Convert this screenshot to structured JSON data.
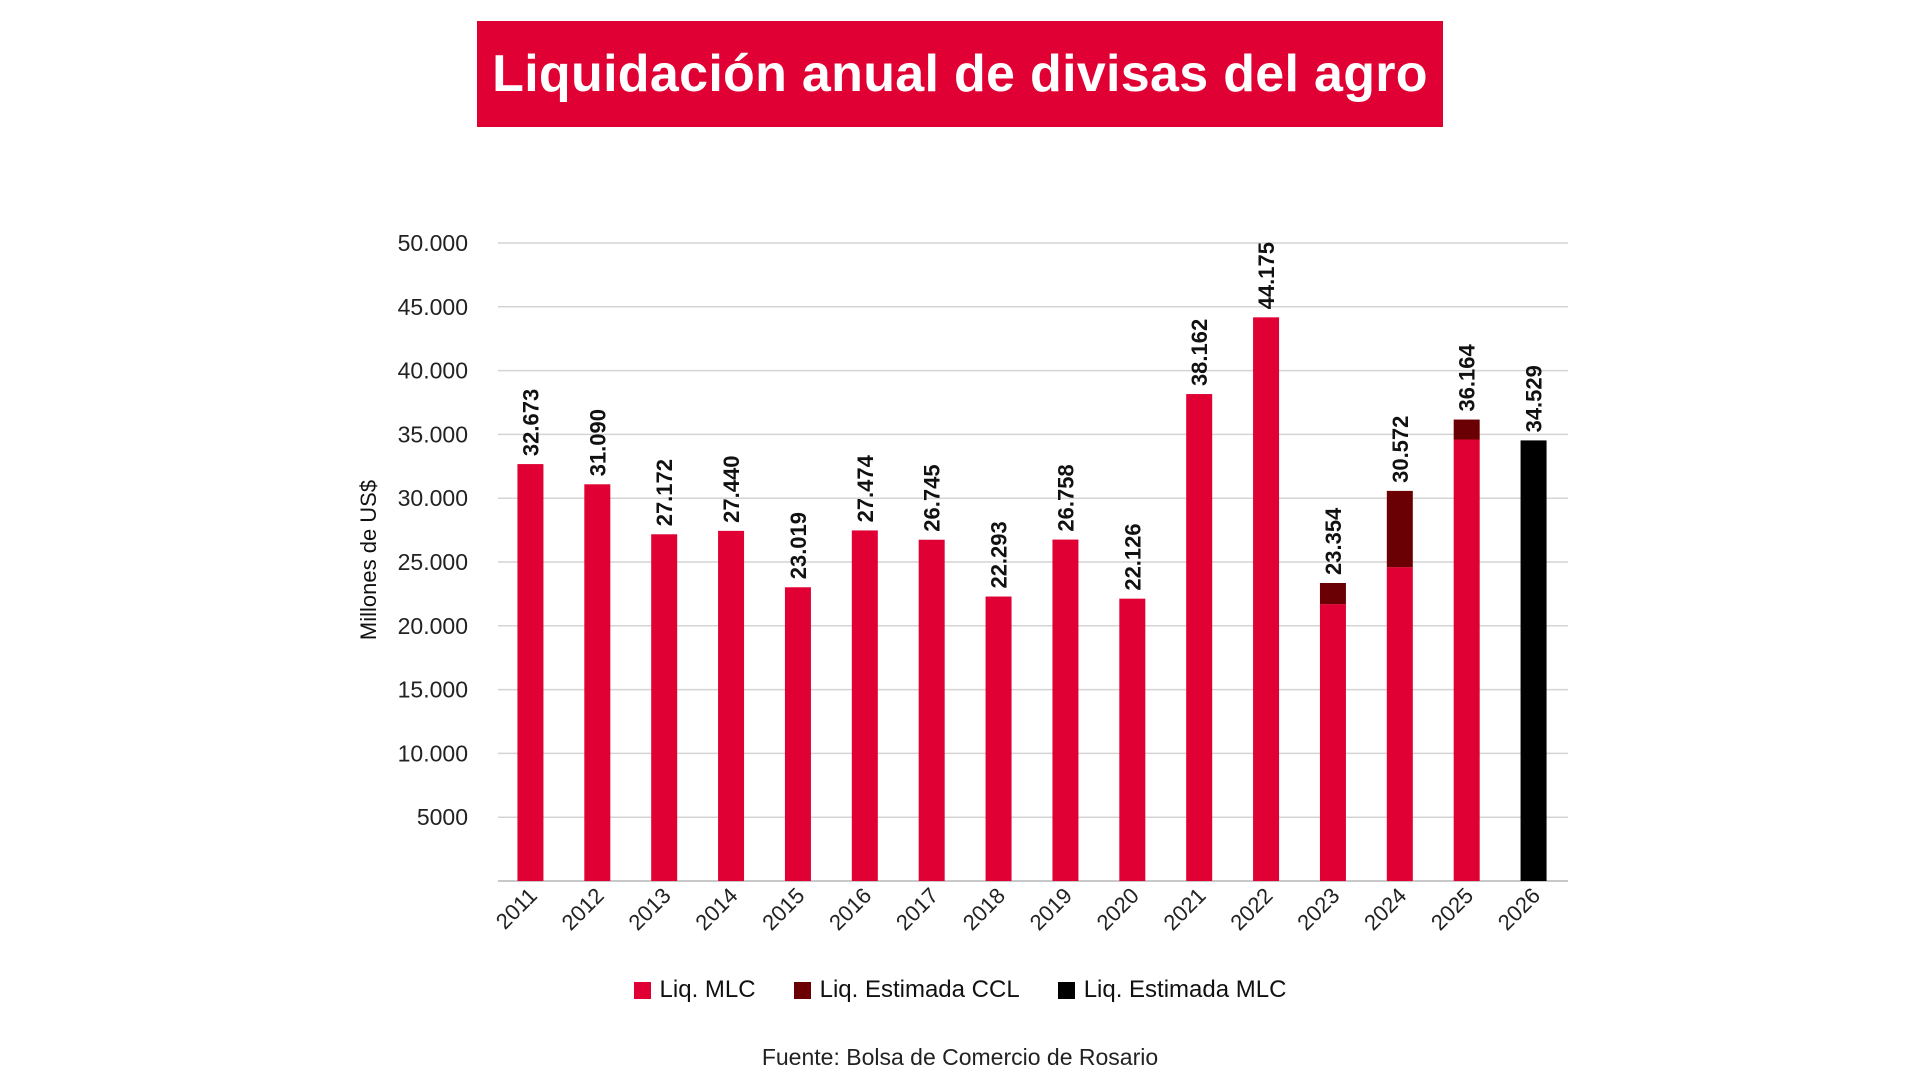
{
  "title": "Liquidación anual de divisas del agro",
  "source": "Fuente: Bolsa de Comercio de Rosario",
  "chart_data": {
    "type": "bar",
    "stacked": true,
    "title": "Liquidación anual de divisas del agro",
    "xlabel": "",
    "ylabel": "Millones de US$",
    "ylim": [
      0,
      50000
    ],
    "yticks": [
      5000,
      10000,
      15000,
      20000,
      25000,
      30000,
      35000,
      40000,
      45000,
      50000
    ],
    "ytick_labels": [
      "5000",
      "10.000",
      "15.000",
      "20.000",
      "25.000",
      "30.000",
      "35.000",
      "40.000",
      "45.000",
      "50.000"
    ],
    "grid": true,
    "legend_position": "bottom-center",
    "categories": [
      "2011",
      "2012",
      "2013",
      "2014",
      "2015",
      "2016",
      "2017",
      "2018",
      "2019",
      "2020",
      "2021",
      "2022",
      "2023",
      "2024",
      "2025",
      "2026"
    ],
    "series": [
      {
        "name": "Liq. MLC",
        "color": "#E00034",
        "values": [
          32673,
          31090,
          27172,
          27440,
          23019,
          27474,
          26745,
          22293,
          26758,
          22126,
          38162,
          44175,
          21700,
          24600,
          34600,
          0
        ]
      },
      {
        "name": "Liq. Estimada CCL",
        "color": "#6B0004",
        "values": [
          0,
          0,
          0,
          0,
          0,
          0,
          0,
          0,
          0,
          0,
          0,
          0,
          1654,
          5972,
          1564,
          0
        ]
      },
      {
        "name": "Liq. Estimada MLC",
        "color": "#000000",
        "values": [
          0,
          0,
          0,
          0,
          0,
          0,
          0,
          0,
          0,
          0,
          0,
          0,
          0,
          0,
          0,
          34529
        ]
      }
    ],
    "totals": [
      32673,
      31090,
      27172,
      27440,
      23019,
      27474,
      26745,
      22293,
      26758,
      22126,
      38162,
      44175,
      23354,
      30572,
      36164,
      34529
    ],
    "data_labels": [
      "32.673",
      "31.090",
      "27.172",
      "27.440",
      "23.019",
      "27.474",
      "26.745",
      "22.293",
      "26.758",
      "22.126",
      "38.162",
      "44.175",
      "23.354",
      "30.572",
      "36.164",
      "34.529"
    ]
  }
}
